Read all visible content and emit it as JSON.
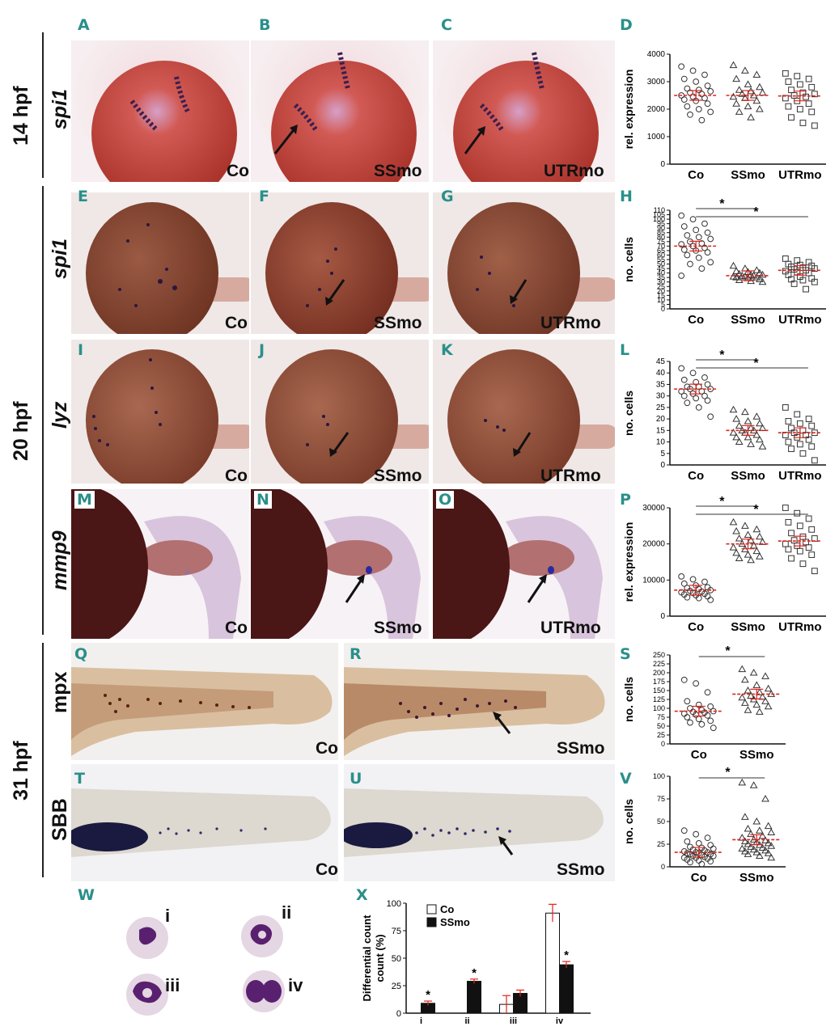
{
  "rows": {
    "r14": "14 hpf",
    "r20": "20 hpf",
    "r31": "31 hpf"
  },
  "genes": {
    "a": "spi1",
    "e": "spi1",
    "i": "lyz",
    "m": "mmp9",
    "q": "mpx",
    "t": "SBB"
  },
  "panels": {
    "A": "A",
    "B": "B",
    "C": "C",
    "D": "D",
    "E": "E",
    "F": "F",
    "G": "G",
    "H": "H",
    "I": "I",
    "J": "J",
    "K": "K",
    "L": "L",
    "M": "M",
    "N": "N",
    "O": "O",
    "P": "P",
    "Q": "Q",
    "R": "R",
    "S": "S",
    "T": "T",
    "U": "U",
    "V": "V",
    "W": "W",
    "X": "X"
  },
  "conditions": {
    "co": "Co",
    "ssmo": "SSmo",
    "utrmo": "UTRmo"
  },
  "cell_stages": [
    "i",
    "ii",
    "iii",
    "iv"
  ],
  "colors": {
    "teal": "#2a8f8a",
    "red_mean": "#e0241b",
    "embryo_red": "#c0473a",
    "embryo_brown": "#7e4630",
    "purple": "#3a2070"
  },
  "chart_data": [
    {
      "id": "D",
      "type": "scatter",
      "ylabel": "rel. expression",
      "categories": [
        "Co",
        "SSmo",
        "UTRmo"
      ],
      "ylim": [
        0,
        4000
      ],
      "yticks": [
        0,
        1000,
        2000,
        3000,
        4000
      ],
      "markers": [
        "circle",
        "triangle",
        "square"
      ],
      "means": [
        2500,
        2500,
        2480
      ],
      "series": [
        {
          "values": [
            3550,
            3400,
            3250,
            3100,
            3000,
            2850,
            2750,
            2700,
            2650,
            2600,
            2550,
            2500,
            2450,
            2400,
            2350,
            2300,
            2200,
            2100,
            2000,
            1900,
            1800,
            1600
          ]
        },
        {
          "values": [
            3600,
            3400,
            3250,
            3100,
            2900,
            2800,
            2700,
            2650,
            2600,
            2550,
            2500,
            2450,
            2400,
            2300,
            2200,
            2100,
            2000,
            1900,
            1700
          ]
        },
        {
          "values": [
            3300,
            3200,
            3100,
            3000,
            2900,
            2800,
            2700,
            2600,
            2550,
            2500,
            2450,
            2400,
            2300,
            2200,
            2100,
            2000,
            1900,
            1700,
            1500,
            1400
          ]
        }
      ],
      "significance": []
    },
    {
      "id": "H",
      "type": "scatter",
      "ylabel": "no. cells",
      "categories": [
        "Co",
        "SSmo",
        "UTRmo"
      ],
      "ylim": [
        0,
        110
      ],
      "yticks": [
        0,
        5,
        10,
        15,
        20,
        25,
        30,
        35,
        40,
        45,
        50,
        55,
        60,
        65,
        70,
        75,
        80,
        85,
        90,
        95,
        100,
        105,
        110
      ],
      "markers": [
        "circle",
        "triangle",
        "square"
      ],
      "means": [
        70,
        37,
        43
      ],
      "series": [
        {
          "values": [
            104,
            100,
            95,
            92,
            88,
            85,
            82,
            80,
            78,
            75,
            73,
            72,
            70,
            68,
            66,
            65,
            63,
            60,
            57,
            52,
            50,
            45,
            37
          ]
        },
        {
          "values": [
            48,
            45,
            43,
            42,
            41,
            40,
            39,
            38,
            38,
            37,
            37,
            36,
            36,
            35,
            35,
            34,
            33,
            32,
            31,
            30
          ]
        },
        {
          "values": [
            56,
            54,
            52,
            50,
            49,
            48,
            47,
            46,
            45,
            44,
            43,
            42,
            41,
            40,
            38,
            36,
            34,
            33,
            32,
            30,
            28,
            22
          ]
        }
      ],
      "significance": [
        "*",
        "*"
      ]
    },
    {
      "id": "L",
      "type": "scatter",
      "ylabel": "no. cells",
      "categories": [
        "Co",
        "SSmo",
        "UTRmo"
      ],
      "ylim": [
        0,
        45
      ],
      "yticks": [
        0,
        5,
        10,
        15,
        20,
        25,
        30,
        35,
        40,
        45
      ],
      "markers": [
        "circle",
        "triangle",
        "square"
      ],
      "means": [
        33,
        15,
        14
      ],
      "series": [
        {
          "values": [
            42,
            40,
            38,
            37,
            36,
            35,
            34,
            34,
            33,
            33,
            32,
            32,
            31,
            30,
            30,
            29,
            28,
            27,
            25,
            21
          ]
        },
        {
          "values": [
            24,
            23,
            21,
            20,
            19,
            18,
            17,
            16,
            16,
            15,
            15,
            14,
            14,
            13,
            12,
            12,
            11,
            10,
            9,
            8
          ]
        },
        {
          "values": [
            25,
            22,
            20,
            19,
            18,
            17,
            16,
            15,
            14,
            14,
            13,
            13,
            12,
            11,
            10,
            9,
            8,
            7,
            5,
            2
          ]
        }
      ],
      "significance": [
        "*",
        "*"
      ]
    },
    {
      "id": "P",
      "type": "scatter",
      "ylabel": "rel. expression",
      "categories": [
        "Co",
        "SSmo",
        "UTRmo"
      ],
      "ylim": [
        0,
        30000
      ],
      "yticks": [
        0,
        10000,
        20000,
        30000
      ],
      "markers": [
        "circle",
        "triangle",
        "square"
      ],
      "means": [
        7200,
        20000,
        20800
      ],
      "series": [
        {
          "values": [
            11000,
            10200,
            9500,
            9000,
            8500,
            8000,
            7800,
            7500,
            7200,
            7000,
            6800,
            6600,
            6400,
            6200,
            6000,
            5800,
            5500,
            5200,
            5000,
            4500
          ]
        },
        {
          "values": [
            26000,
            25000,
            24000,
            23500,
            22500,
            22000,
            21500,
            21000,
            20500,
            20000,
            19500,
            19000,
            18500,
            18000,
            17500,
            17000,
            16500,
            16000,
            15500
          ]
        },
        {
          "values": [
            30000,
            28500,
            27000,
            26000,
            25000,
            24000,
            23000,
            22000,
            21500,
            21000,
            20500,
            20000,
            19500,
            19000,
            18500,
            18000,
            17000,
            16000,
            14500,
            12500
          ]
        }
      ],
      "significance": [
        "*",
        "*"
      ]
    },
    {
      "id": "S",
      "type": "scatter",
      "ylabel": "no. cells",
      "categories": [
        "Co",
        "SSmo"
      ],
      "ylim": [
        0,
        250
      ],
      "yticks": [
        0,
        25,
        50,
        75,
        100,
        125,
        150,
        175,
        200,
        225,
        250
      ],
      "markers": [
        "circle",
        "triangle"
      ],
      "means": [
        92,
        140
      ],
      "series": [
        {
          "values": [
            180,
            170,
            145,
            120,
            110,
            105,
            100,
            95,
            92,
            90,
            88,
            85,
            82,
            80,
            75,
            70,
            65,
            60,
            55,
            45
          ]
        },
        {
          "values": [
            210,
            200,
            190,
            180,
            165,
            155,
            150,
            145,
            140,
            135,
            132,
            130,
            125,
            120,
            115,
            110,
            105,
            95,
            90
          ]
        }
      ],
      "significance": [
        "*"
      ]
    },
    {
      "id": "V",
      "type": "scatter",
      "ylabel": "no. cells",
      "categories": [
        "Co",
        "SSmo"
      ],
      "ylim": [
        0,
        100
      ],
      "yticks": [
        0,
        25,
        50,
        75,
        100
      ],
      "markers": [
        "circle",
        "triangle"
      ],
      "means": [
        16,
        30
      ],
      "series": [
        {
          "values": [
            40,
            36,
            32,
            28,
            26,
            24,
            22,
            21,
            20,
            19,
            18,
            17,
            16,
            16,
            15,
            15,
            14,
            14,
            13,
            12,
            12,
            11,
            10,
            10,
            9,
            8,
            7,
            6,
            5,
            3
          ]
        },
        {
          "values": [
            93,
            90,
            75,
            55,
            50,
            45,
            42,
            40,
            38,
            36,
            34,
            32,
            30,
            29,
            28,
            27,
            26,
            25,
            24,
            23,
            22,
            21,
            20,
            19,
            18,
            17,
            16,
            15,
            14,
            12,
            10
          ]
        }
      ],
      "significance": [
        "*"
      ]
    },
    {
      "id": "X",
      "type": "bar",
      "ylabel": "Differential count (%)",
      "categories": [
        "i",
        "ii",
        "iii",
        "iv"
      ],
      "ylim": [
        0,
        100
      ],
      "yticks": [
        0,
        25,
        50,
        75,
        100
      ],
      "series": [
        {
          "name": "Co",
          "values": [
            0,
            0,
            8,
            91
          ],
          "errors": [
            0,
            0,
            8,
            8
          ]
        },
        {
          "name": "SSmo",
          "values": [
            9,
            29,
            18,
            44
          ],
          "errors": [
            2,
            2,
            3,
            3
          ]
        }
      ],
      "significance": [
        "*",
        "*",
        "",
        "*"
      ]
    }
  ]
}
